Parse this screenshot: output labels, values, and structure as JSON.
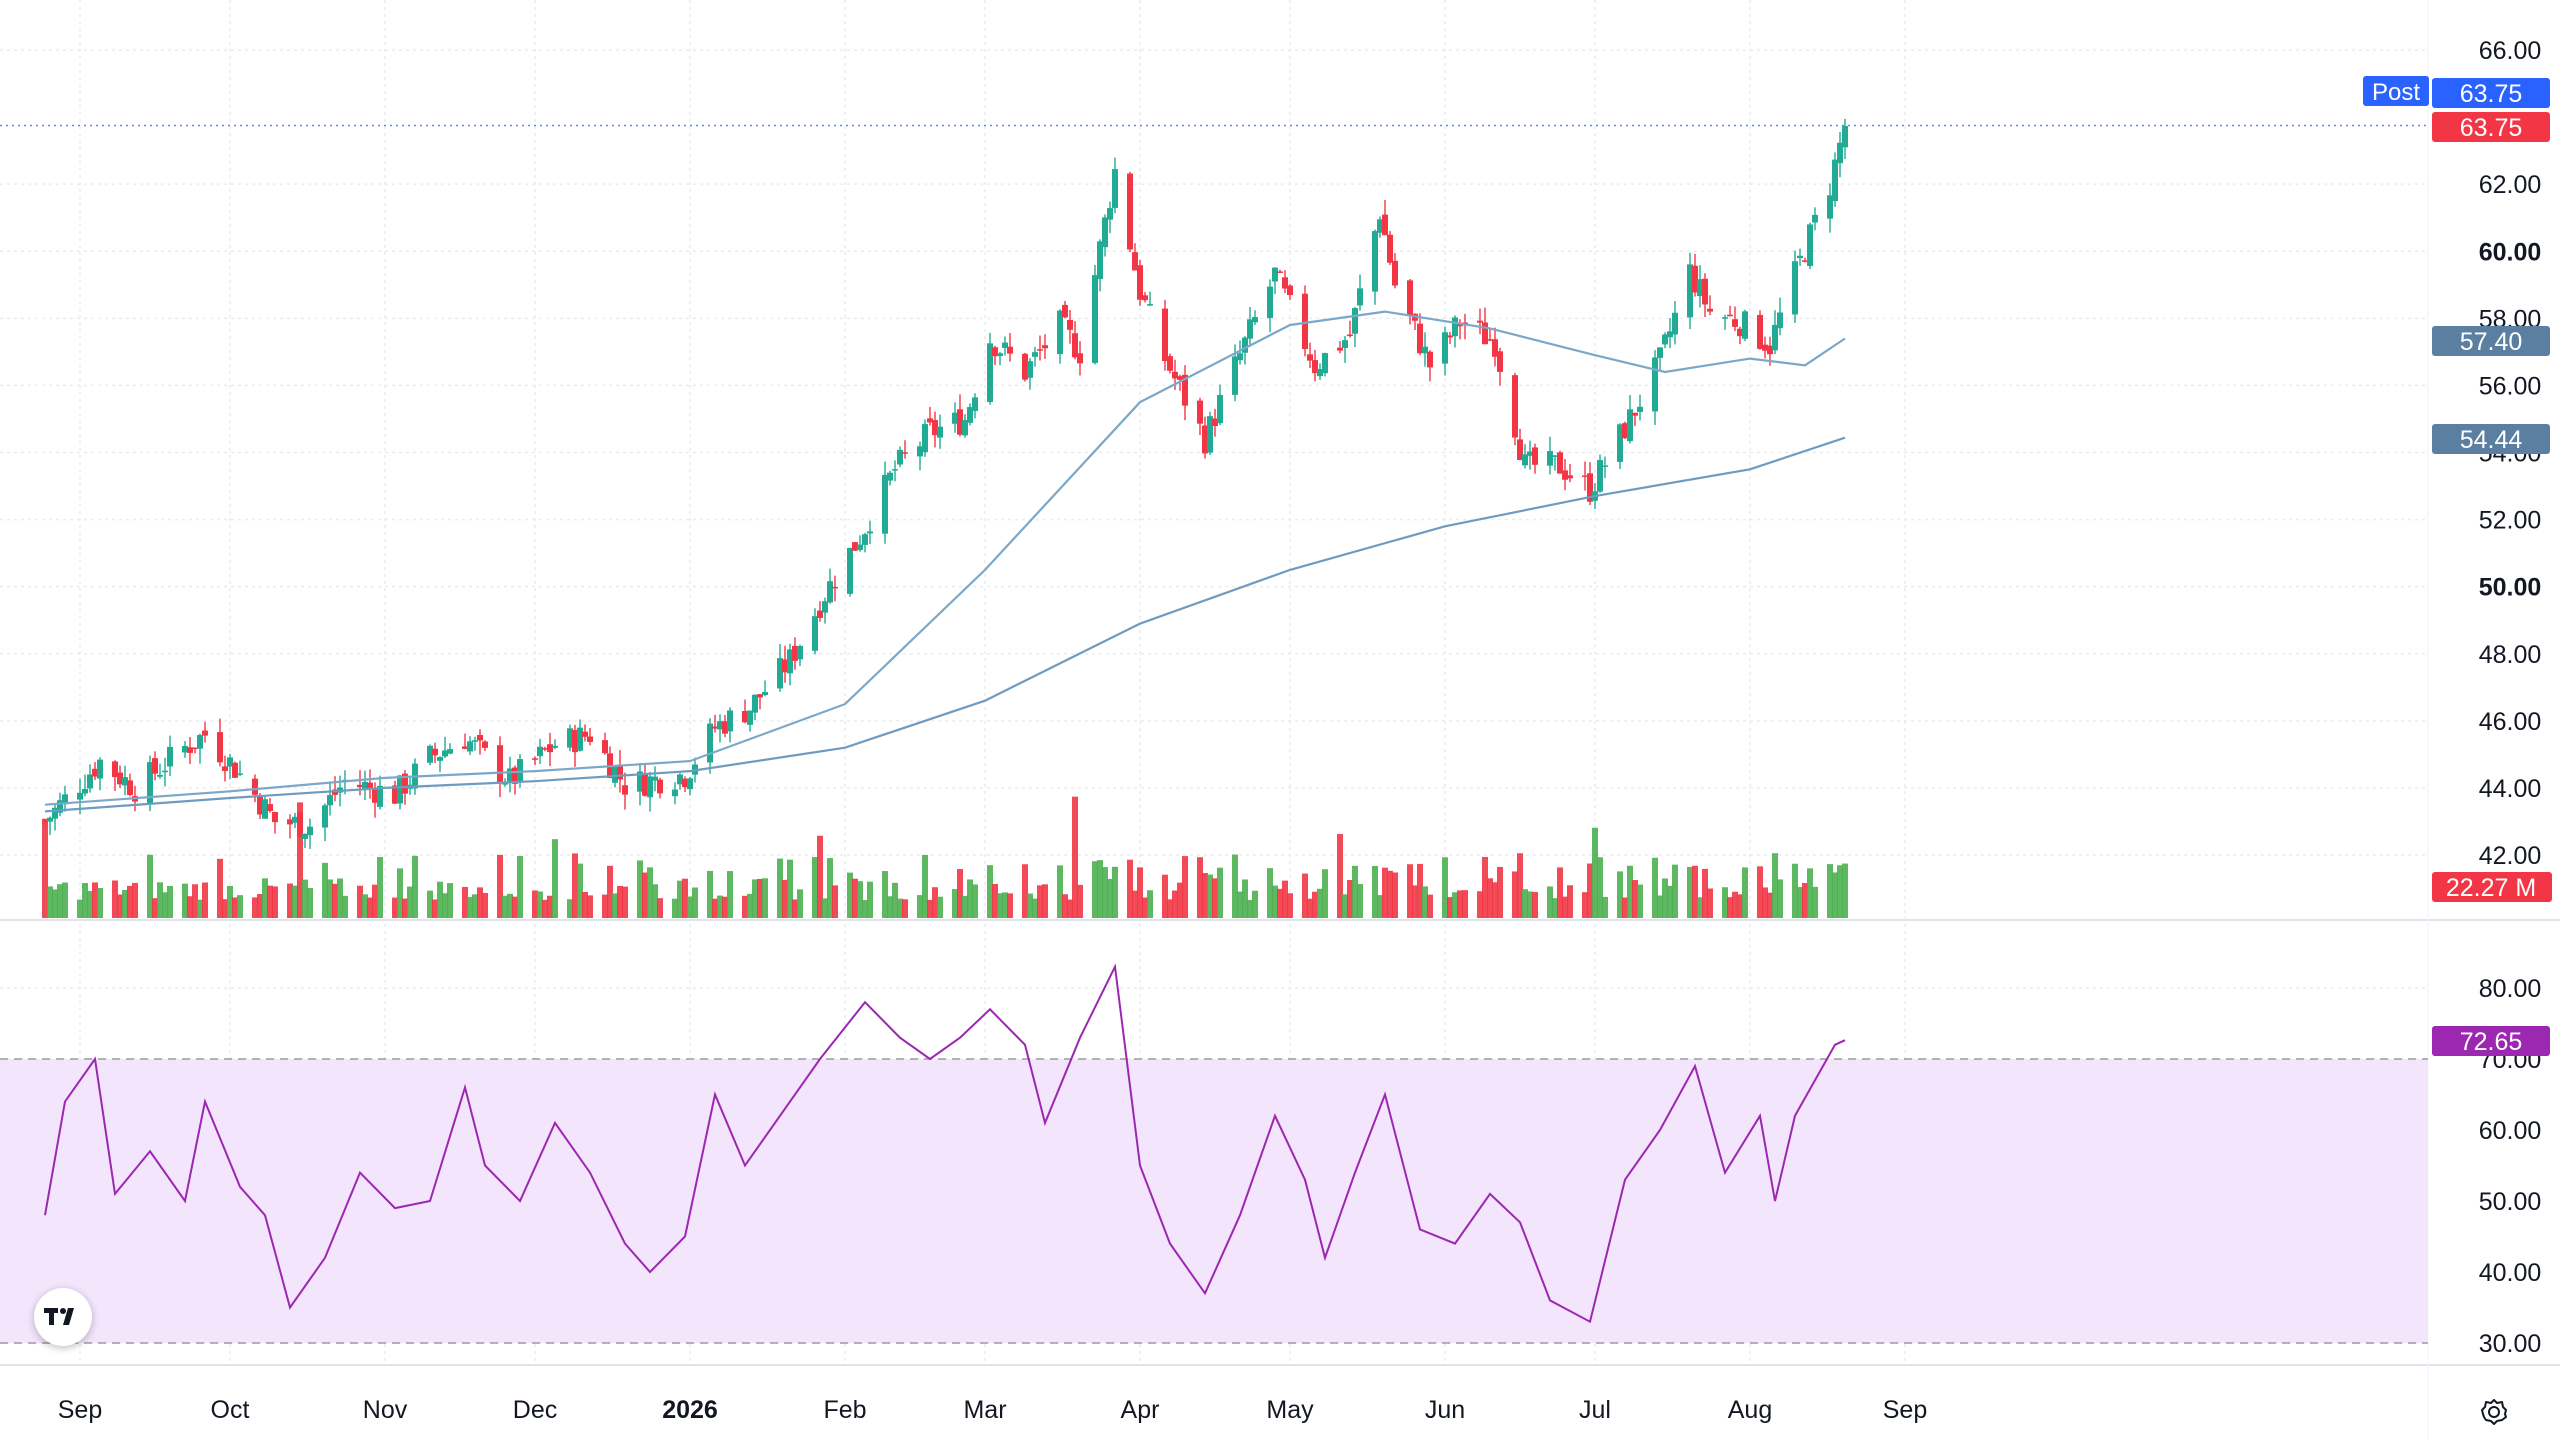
{
  "chart_data": [
    {
      "type": "candlestick",
      "title": "",
      "ylim": [
        41.3,
        66.6
      ],
      "y_ticks": [
        "66.00",
        "62.00",
        "60.00",
        "58.00",
        "56.00",
        "54.00",
        "52.00",
        "50.00",
        "48.00",
        "46.00",
        "44.00",
        "42.00"
      ],
      "y_ticks_bold": [
        "60.00",
        "50.00"
      ],
      "x_ticks": [
        {
          "label": "Sep",
          "date": "2025-09-01",
          "bold": false
        },
        {
          "label": "Oct",
          "date": "2025-10-01",
          "bold": false
        },
        {
          "label": "Nov",
          "date": "2025-11-01",
          "bold": false
        },
        {
          "label": "Dec",
          "date": "2025-12-01",
          "bold": false
        },
        {
          "label": "2026",
          "date": "2026-01-01",
          "bold": true
        },
        {
          "label": "Feb",
          "date": "2026-02-01",
          "bold": false
        },
        {
          "label": "Mar",
          "date": "2026-03-01",
          "bold": false
        },
        {
          "label": "Apr",
          "date": "2026-04-01",
          "bold": false
        },
        {
          "label": "May",
          "date": "2026-05-01",
          "bold": false
        },
        {
          "label": "Jun",
          "date": "2026-06-01",
          "bold": false
        },
        {
          "label": "Jul",
          "date": "2026-07-01",
          "bold": false
        },
        {
          "label": "Aug",
          "date": "2026-08-01",
          "bold": false
        },
        {
          "label": "Sep",
          "date": "2026-09-01",
          "bold": false
        }
      ],
      "anchors": [
        [
          "2025-08-25",
          43.0
        ],
        [
          "2025-09-05",
          44.8
        ],
        [
          "2025-09-12",
          44.0
        ],
        [
          "2025-09-22",
          45.2
        ],
        [
          "2025-09-26",
          45.6
        ],
        [
          "2025-10-02",
          44.6
        ],
        [
          "2025-10-10",
          43.0
        ],
        [
          "2025-10-17",
          42.9
        ],
        [
          "2025-10-24",
          44.2
        ],
        [
          "2025-11-03",
          43.8
        ],
        [
          "2025-11-10",
          44.9
        ],
        [
          "2025-11-17",
          45.5
        ],
        [
          "2025-11-26",
          44.2
        ],
        [
          "2025-12-05",
          45.3
        ],
        [
          "2025-12-12",
          45.6
        ],
        [
          "2025-12-19",
          44.1
        ],
        [
          "2025-12-31",
          44.4
        ],
        [
          "2026-01-06",
          45.8
        ],
        [
          "2026-01-13",
          46.4
        ],
        [
          "2026-01-21",
          47.8
        ],
        [
          "2026-01-28",
          49.8
        ],
        [
          "2026-02-04",
          51.5
        ],
        [
          "2026-02-11",
          53.5
        ],
        [
          "2026-02-18",
          54.6
        ],
        [
          "2026-02-25",
          55.0
        ],
        [
          "2026-03-02",
          57.4
        ],
        [
          "2026-03-09",
          56.4
        ],
        [
          "2026-03-16",
          57.8
        ],
        [
          "2026-03-20",
          57.0
        ],
        [
          "2026-03-27",
          62.4
        ],
        [
          "2026-04-01",
          58.8
        ],
        [
          "2026-04-06",
          56.8
        ],
        [
          "2026-04-14",
          54.4
        ],
        [
          "2026-04-21",
          56.9
        ],
        [
          "2026-04-28",
          59.3
        ],
        [
          "2026-05-06",
          56.6
        ],
        [
          "2026-05-13",
          57.5
        ],
        [
          "2026-05-19",
          61.2
        ],
        [
          "2026-05-22",
          59.0
        ],
        [
          "2026-05-29",
          56.6
        ],
        [
          "2026-06-04",
          57.9
        ],
        [
          "2026-06-11",
          57.3
        ],
        [
          "2026-06-17",
          53.6
        ],
        [
          "2026-06-24",
          53.6
        ],
        [
          "2026-06-30",
          52.9
        ],
        [
          "2026-07-08",
          55.0
        ],
        [
          "2026-07-14",
          56.7
        ],
        [
          "2026-07-20",
          59.4
        ],
        [
          "2026-07-24",
          58.2
        ],
        [
          "2026-07-30",
          57.9
        ],
        [
          "2026-08-05",
          57.2
        ],
        [
          "2026-08-10",
          59.3
        ],
        [
          "2026-08-17",
          62.0
        ],
        [
          "2026-08-20",
          63.75
        ]
      ],
      "series": [
        {
          "name": "OHLC",
          "up_color": "#22ab94",
          "down_color": "#f23645",
          "last": "63.75",
          "last_label": "63.75"
        },
        {
          "name": "MA 50",
          "color": "#7ba7c9",
          "last": "57.40",
          "points": [
            [
              "2025-08-25",
              43.5
            ],
            [
              "2025-10-01",
              43.9
            ],
            [
              "2025-11-01",
              44.3
            ],
            [
              "2025-12-01",
              44.5
            ],
            [
              "2026-01-01",
              44.8
            ],
            [
              "2026-02-01",
              46.5
            ],
            [
              "2026-03-01",
              50.5
            ],
            [
              "2026-04-01",
              55.5
            ],
            [
              "2026-05-01",
              57.8
            ],
            [
              "2026-05-20",
              58.2
            ],
            [
              "2026-06-10",
              57.7
            ],
            [
              "2026-07-01",
              56.9
            ],
            [
              "2026-07-15",
              56.4
            ],
            [
              "2026-08-01",
              56.8
            ],
            [
              "2026-08-12",
              56.6
            ],
            [
              "2026-08-20",
              57.4
            ]
          ]
        },
        {
          "name": "MA 200",
          "color": "#6f9bc0",
          "last": "54.44",
          "points": [
            [
              "2025-08-25",
              43.3
            ],
            [
              "2025-10-01",
              43.7
            ],
            [
              "2025-11-01",
              44.0
            ],
            [
              "2025-12-01",
              44.2
            ],
            [
              "2026-01-01",
              44.5
            ],
            [
              "2026-02-01",
              45.2
            ],
            [
              "2026-03-01",
              46.6
            ],
            [
              "2026-04-01",
              48.9
            ],
            [
              "2026-05-01",
              50.5
            ],
            [
              "2026-06-01",
              51.8
            ],
            [
              "2026-07-01",
              52.7
            ],
            [
              "2026-08-01",
              53.5
            ],
            [
              "2026-08-20",
              54.44
            ]
          ]
        }
      ],
      "post_market": {
        "label": "Post",
        "value": "63.75",
        "color": "#2962ff"
      },
      "volume": {
        "last_label": "22.27 M",
        "up_color": "#4caf50",
        "down_color": "#f23645"
      }
    },
    {
      "type": "line",
      "title": "",
      "name": "RSI",
      "ylim": [
        28,
        84
      ],
      "y_ticks": [
        "80.00",
        "70.00",
        "60.00",
        "50.00",
        "40.00",
        "30.00"
      ],
      "band": [
        30,
        70
      ],
      "color": "#9c27b0",
      "last": "72.65",
      "points": [
        [
          "2025-08-25",
          48
        ],
        [
          "2025-08-29",
          64
        ],
        [
          "2025-09-04",
          70
        ],
        [
          "2025-09-08",
          51
        ],
        [
          "2025-09-15",
          57
        ],
        [
          "2025-09-22",
          50
        ],
        [
          "2025-09-26",
          64
        ],
        [
          "2025-10-03",
          52
        ],
        [
          "2025-10-08",
          48
        ],
        [
          "2025-10-13",
          35
        ],
        [
          "2025-10-20",
          42
        ],
        [
          "2025-10-27",
          54
        ],
        [
          "2025-11-03",
          49
        ],
        [
          "2025-11-10",
          50
        ],
        [
          "2025-11-17",
          66
        ],
        [
          "2025-11-21",
          55
        ],
        [
          "2025-11-28",
          50
        ],
        [
          "2025-12-05",
          61
        ],
        [
          "2025-12-12",
          54
        ],
        [
          "2025-12-19",
          44
        ],
        [
          "2025-12-24",
          40
        ],
        [
          "2025-12-31",
          45
        ],
        [
          "2026-01-06",
          65
        ],
        [
          "2026-01-12",
          55
        ],
        [
          "2026-01-20",
          63
        ],
        [
          "2026-01-27",
          70
        ],
        [
          "2026-02-05",
          78
        ],
        [
          "2026-02-12",
          73
        ],
        [
          "2026-02-18",
          70
        ],
        [
          "2026-02-24",
          73
        ],
        [
          "2026-03-02",
          77
        ],
        [
          "2026-03-09",
          72
        ],
        [
          "2026-03-13",
          61
        ],
        [
          "2026-03-20",
          73
        ],
        [
          "2026-03-27",
          83
        ],
        [
          "2026-04-01",
          55
        ],
        [
          "2026-04-07",
          44
        ],
        [
          "2026-04-14",
          37
        ],
        [
          "2026-04-21",
          48
        ],
        [
          "2026-04-28",
          62
        ],
        [
          "2026-05-04",
          53
        ],
        [
          "2026-05-08",
          42
        ],
        [
          "2026-05-14",
          54
        ],
        [
          "2026-05-20",
          65
        ],
        [
          "2026-05-27",
          46
        ],
        [
          "2026-06-03",
          44
        ],
        [
          "2026-06-10",
          51
        ],
        [
          "2026-06-16",
          47
        ],
        [
          "2026-06-22",
          36
        ],
        [
          "2026-06-30",
          33
        ],
        [
          "2026-07-07",
          53
        ],
        [
          "2026-07-14",
          60
        ],
        [
          "2026-07-21",
          69
        ],
        [
          "2026-07-27",
          54
        ],
        [
          "2026-08-03",
          62
        ],
        [
          "2026-08-06",
          50
        ],
        [
          "2026-08-10",
          62
        ],
        [
          "2026-08-14",
          67
        ],
        [
          "2026-08-18",
          72
        ],
        [
          "2026-08-20",
          72.65
        ]
      ]
    }
  ],
  "ui": {
    "logo_text": "TV",
    "settings_icon": "gear-icon",
    "colors": {
      "grid": "#e9ecef",
      "axis_text": "#131722",
      "rsi_band_fill": "#f3e5fc",
      "rsi_line": "#9c27b0",
      "ma_line": "#7ba7c9",
      "price_dotted": "#5b8def"
    }
  }
}
